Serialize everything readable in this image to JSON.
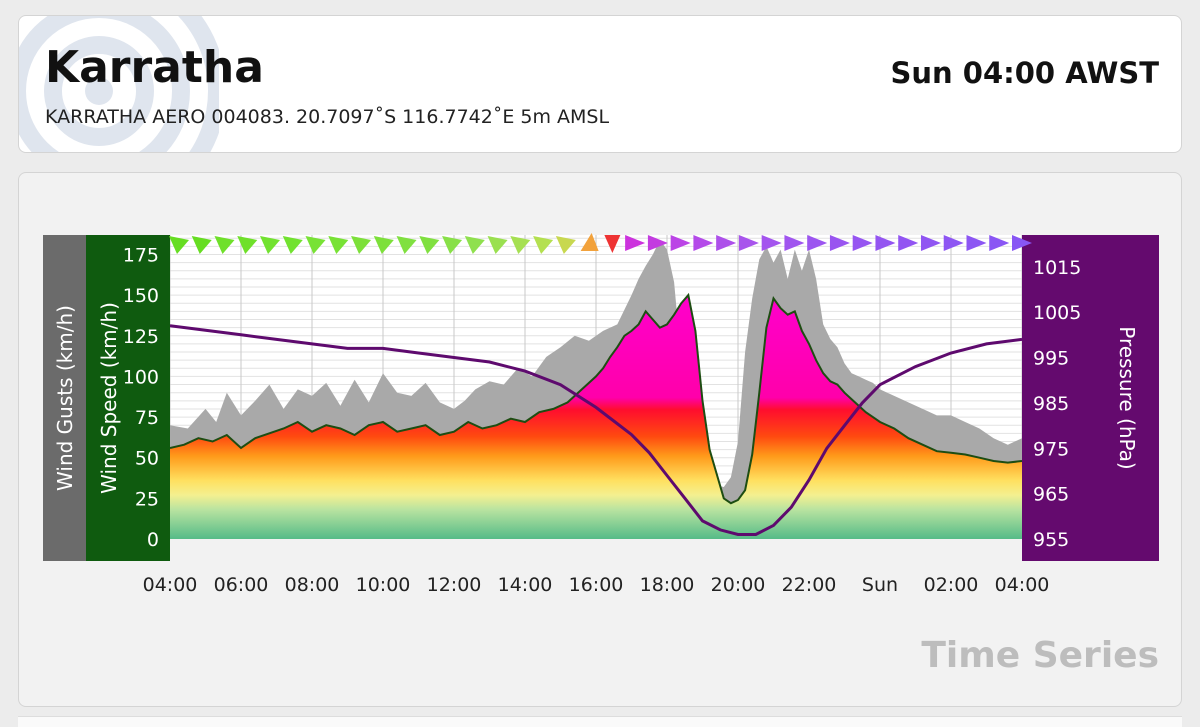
{
  "station": {
    "name": "Karratha",
    "details": "KARRATHA AERO 004083. 20.7097˚S 116.7742˚E 5m AMSL",
    "time": "Sun 04:00 AWST"
  },
  "panel": {
    "footer": "Time Series"
  },
  "colors": {
    "gust": "#a9a9a9",
    "wind_line": "#1d4d12",
    "pressure_line": "#5e0a6e",
    "gust_axis_bg": "#6b6b6b",
    "wind_axis_bg": "#0f5b0f",
    "pressure_axis_bg": "#640a6e"
  },
  "chart_data": {
    "type": "area",
    "axes": {
      "left_outer_label": "Wind Gusts (km/h)",
      "left_inner_label": "Wind Speed (km/h)",
      "right_label": "Pressure (hPa)",
      "left_ticks": [
        0,
        25,
        50,
        75,
        100,
        125,
        150,
        175
      ],
      "left_range": [
        0,
        187
      ],
      "right_ticks": [
        955,
        965,
        975,
        985,
        995,
        1005,
        1015
      ],
      "right_range": [
        955,
        1022
      ]
    },
    "x_ticks": [
      "04:00",
      "06:00",
      "08:00",
      "10:00",
      "12:00",
      "14:00",
      "16:00",
      "18:00",
      "20:00",
      "22:00",
      "Sun",
      "02:00",
      "04:00"
    ],
    "x_range_hours": [
      0,
      24
    ],
    "series": [
      {
        "name": "Wind Gusts (km/h)",
        "x": [
          0,
          0.5,
          1,
          1.3,
          1.6,
          2,
          2.4,
          2.8,
          3.2,
          3.6,
          4,
          4.4,
          4.8,
          5.2,
          5.6,
          6,
          6.4,
          6.8,
          7.2,
          7.6,
          8,
          8.3,
          8.6,
          9,
          9.4,
          9.8,
          10.2,
          10.6,
          11,
          11.4,
          11.8,
          12.2,
          12.6,
          13,
          13.2,
          13.4,
          13.6,
          13.8,
          14,
          14.2,
          14.4,
          14.6,
          14.8,
          15,
          15.2,
          15.4,
          15.6,
          15.8,
          16,
          16.2,
          16.4,
          16.6,
          16.8,
          17,
          17.2,
          17.4,
          17.6,
          17.8,
          18,
          18.2,
          18.4,
          18.6,
          18.8,
          19,
          19.2,
          19.4,
          19.6,
          19.8,
          20,
          20.4,
          20.8,
          21.2,
          21.6,
          22,
          22.4,
          22.8,
          23.2,
          23.6,
          24
        ],
        "values": [
          70,
          68,
          80,
          72,
          90,
          76,
          85,
          95,
          80,
          92,
          88,
          96,
          82,
          98,
          84,
          102,
          90,
          88,
          96,
          84,
          80,
          85,
          92,
          97,
          95,
          105,
          100,
          112,
          118,
          125,
          122,
          128,
          132,
          150,
          160,
          168,
          175,
          184,
          178,
          158,
          110,
          60,
          38,
          34,
          30,
          33,
          32,
          38,
          60,
          115,
          148,
          172,
          180,
          170,
          178,
          160,
          178,
          165,
          178,
          160,
          132,
          123,
          118,
          108,
          102,
          100,
          98,
          96,
          92,
          88,
          84,
          80,
          76,
          76,
          72,
          68,
          62,
          58,
          62
        ]
      },
      {
        "name": "Wind Speed (km/h)",
        "x": [
          0,
          0.4,
          0.8,
          1.2,
          1.6,
          2,
          2.4,
          2.8,
          3.2,
          3.6,
          4,
          4.4,
          4.8,
          5.2,
          5.6,
          6,
          6.4,
          6.8,
          7.2,
          7.6,
          8,
          8.4,
          8.8,
          9.2,
          9.6,
          10,
          10.4,
          10.8,
          11.2,
          11.6,
          12,
          12.2,
          12.4,
          12.6,
          12.8,
          13,
          13.2,
          13.4,
          13.6,
          13.8,
          14,
          14.2,
          14.4,
          14.6,
          14.8,
          15,
          15.2,
          15.4,
          15.6,
          15.8,
          16,
          16.2,
          16.4,
          16.6,
          16.8,
          17,
          17.2,
          17.4,
          17.6,
          17.8,
          18,
          18.2,
          18.4,
          18.6,
          18.8,
          19,
          19.2,
          19.4,
          19.6,
          19.8,
          20,
          20.4,
          20.8,
          21.2,
          21.6,
          22,
          22.4,
          22.8,
          23.2,
          23.6,
          24
        ],
        "values": [
          56,
          58,
          62,
          60,
          64,
          56,
          62,
          65,
          68,
          72,
          66,
          70,
          68,
          64,
          70,
          72,
          66,
          68,
          70,
          64,
          66,
          72,
          68,
          70,
          74,
          72,
          78,
          80,
          84,
          92,
          100,
          105,
          112,
          118,
          125,
          128,
          132,
          140,
          135,
          130,
          132,
          138,
          145,
          150,
          128,
          85,
          55,
          40,
          25,
          22,
          24,
          30,
          52,
          90,
          130,
          148,
          142,
          138,
          140,
          128,
          120,
          110,
          102,
          97,
          95,
          90,
          86,
          82,
          78,
          75,
          72,
          68,
          62,
          58,
          54,
          53,
          52,
          50,
          48,
          47,
          48
        ]
      },
      {
        "name": "Pressure (hPa)",
        "x": [
          0,
          1,
          2,
          3,
          4,
          5,
          6,
          7,
          8,
          9,
          10,
          11,
          12,
          12.5,
          13,
          13.5,
          14,
          14.5,
          15,
          15.5,
          16,
          16.5,
          17,
          17.5,
          18,
          18.5,
          19,
          19.5,
          20,
          21,
          22,
          23,
          24
        ],
        "values": [
          1002,
          1001,
          1000,
          999,
          998,
          997,
          997,
          996,
          995,
          994,
          992,
          989,
          984,
          981,
          978,
          974,
          969,
          964,
          959,
          957,
          956,
          956,
          958,
          962,
          968,
          975,
          980,
          985,
          989,
          993,
          996,
          998,
          999
        ]
      }
    ],
    "wind_direction_arrows": 38
  }
}
